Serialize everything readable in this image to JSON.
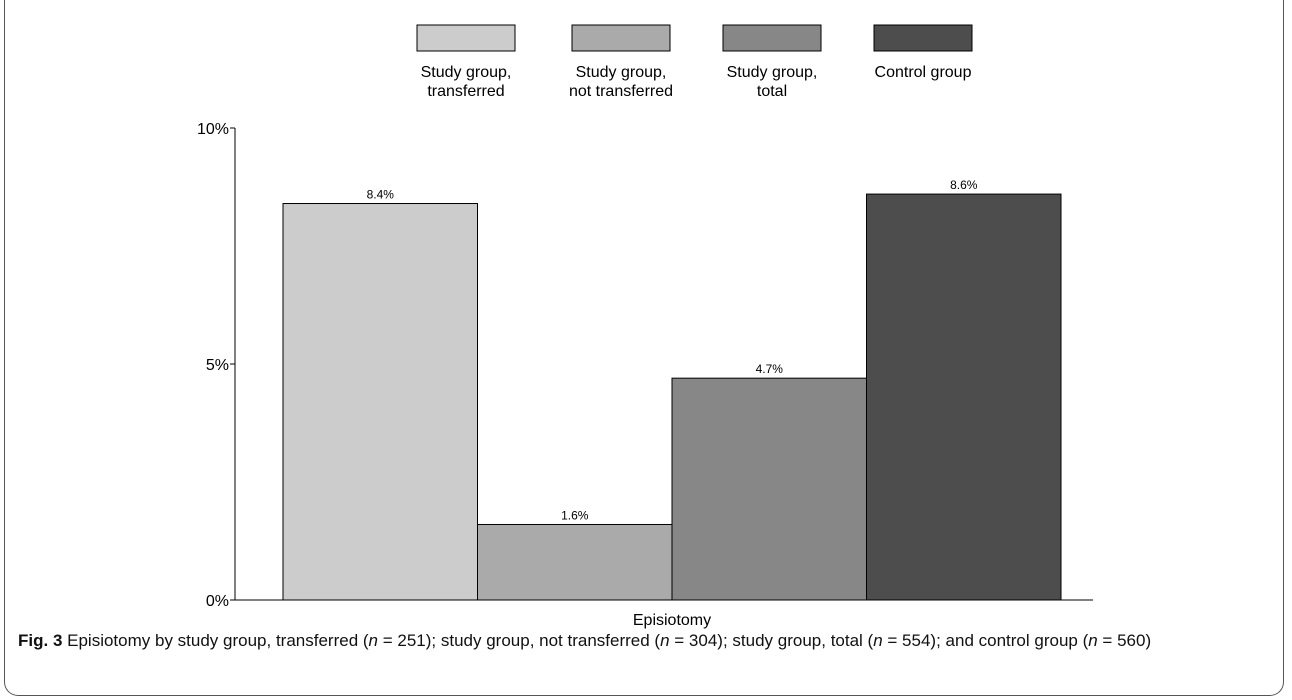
{
  "chart_data": {
    "type": "bar",
    "categories": [
      "Episiotomy"
    ],
    "series": [
      {
        "name": "Study group, transferred",
        "name_lines": [
          "Study group,",
          "transferred"
        ],
        "values": [
          8.4
        ],
        "label": "8.4%",
        "color": "#cccccc"
      },
      {
        "name": "Study group, not transferred",
        "name_lines": [
          "Study group,",
          "not transferred"
        ],
        "values": [
          1.6
        ],
        "label": "1.6%",
        "color": "#aaaaaa"
      },
      {
        "name": "Study group, total",
        "name_lines": [
          "Study group,",
          "total"
        ],
        "values": [
          4.7
        ],
        "label": "4.7%",
        "color": "#878787"
      },
      {
        "name": "Control group",
        "name_lines": [
          "Control group"
        ],
        "values": [
          8.6
        ],
        "label": "8.6%",
        "color": "#4d4d4d"
      }
    ],
    "ylim": [
      0,
      10
    ],
    "yticks": [
      {
        "value": 0,
        "label": "0%"
      },
      {
        "value": 5,
        "label": "5%"
      },
      {
        "value": 10,
        "label": "10%"
      }
    ],
    "xlabel": "Episiotomy",
    "ylabel": "",
    "legend_position": "top"
  },
  "caption": {
    "label": "Fig. 3",
    "parts": [
      {
        "text": " Episiotomy by study group, transferred (",
        "italic": false
      },
      {
        "text": "n",
        "italic": true
      },
      {
        "text": " = 251); study group, not transferred (",
        "italic": false
      },
      {
        "text": "n",
        "italic": true
      },
      {
        "text": " = 304); study group, total (",
        "italic": false
      },
      {
        "text": "n",
        "italic": true
      },
      {
        "text": " = 554); and control group (",
        "italic": false
      },
      {
        "text": "n",
        "italic": true
      },
      {
        "text": " = 560)",
        "italic": false
      }
    ]
  }
}
